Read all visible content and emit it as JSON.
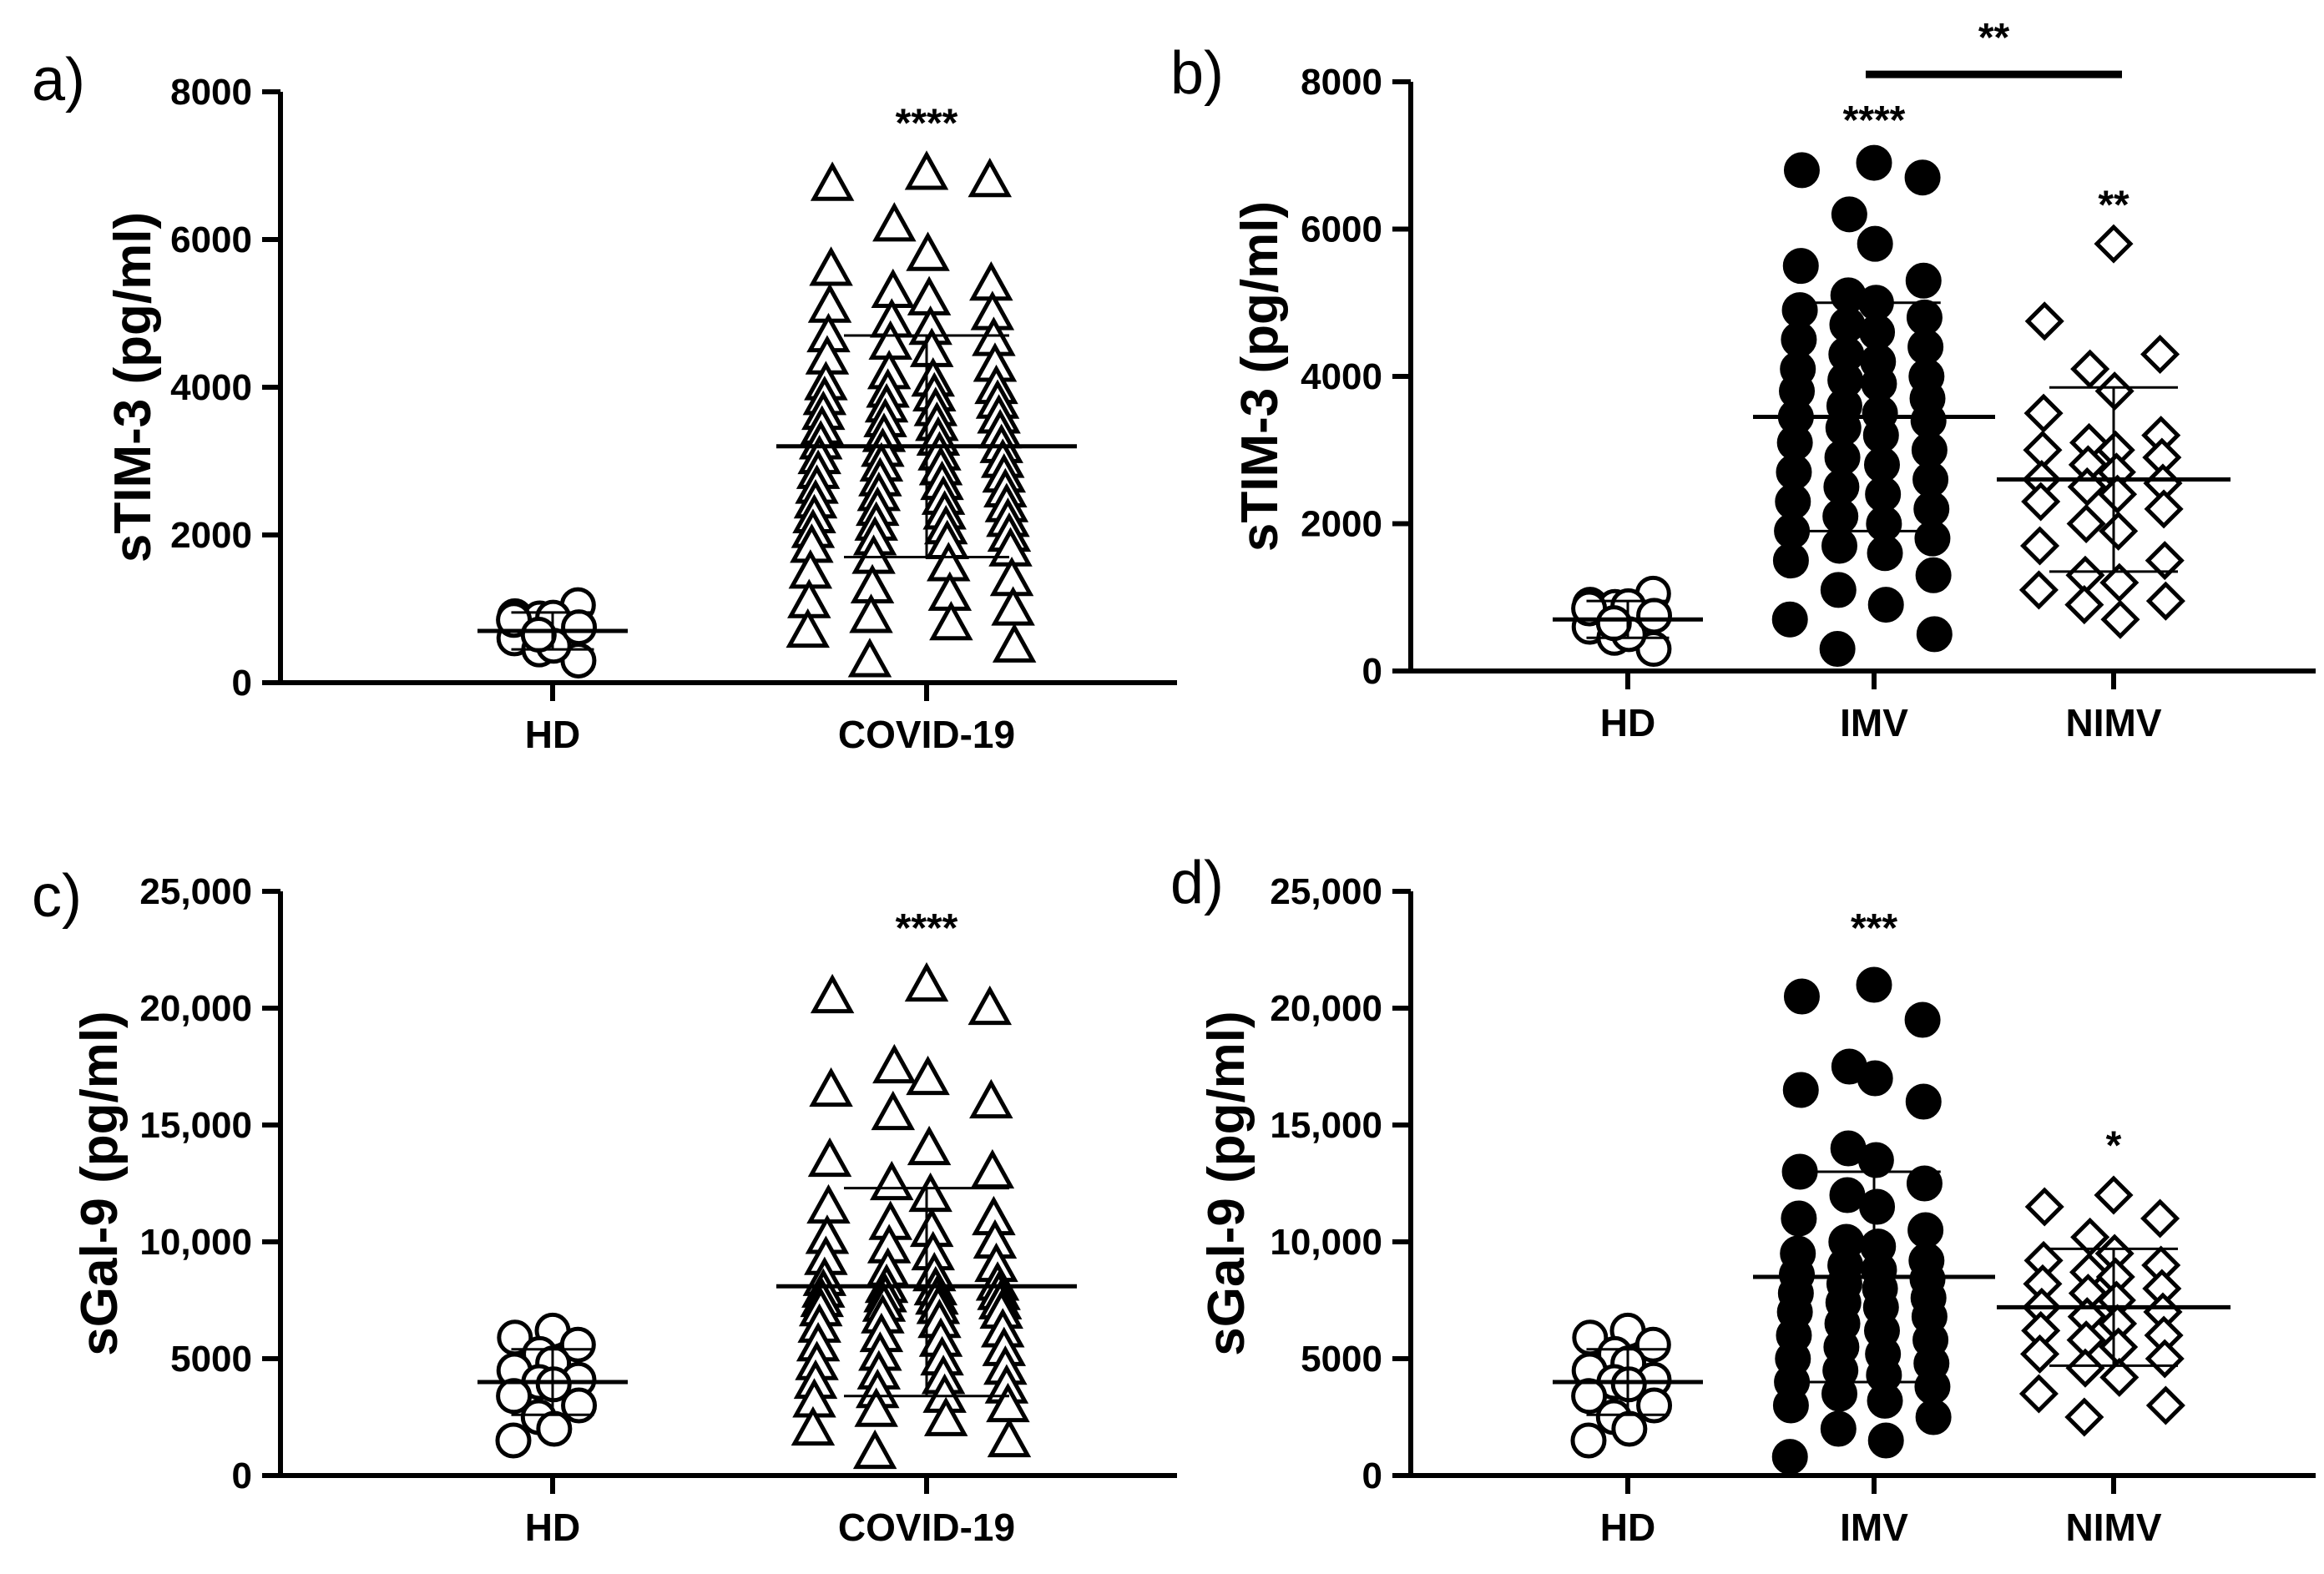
{
  "figure": {
    "panels": [
      {
        "id": "a",
        "letter": "a)",
        "ylabel": "sTIM-3 (pg/ml)",
        "ylim": [
          0,
          8000
        ],
        "yticks": [
          0,
          2000,
          4000,
          6000,
          8000
        ],
        "ytick_labels": [
          "0",
          "2000",
          "4000",
          "6000",
          "8000"
        ],
        "categories": [
          "HD",
          "COVID-19"
        ],
        "markers": [
          "circle",
          "triangle"
        ],
        "significance": [
          {
            "category": "COVID-19",
            "text": "****",
            "y": 7600
          }
        ],
        "brackets": [],
        "series": [
          {
            "category": "HD",
            "mean": 700,
            "sd_low": 450,
            "sd_high": 950,
            "values": [
              720,
              900,
              1050,
              870,
              880,
              600,
              300,
              450,
              500,
              850,
              750,
              650
            ]
          },
          {
            "category": "COVID-19",
            "mean": 3200,
            "sd_low": 1700,
            "sd_high": 4700,
            "values": [
              6900,
              6750,
              6800,
              6200,
              5800,
              5600,
              5400,
              5300,
              5200,
              5100,
              5000,
              4900,
              4800,
              4700,
              4650,
              4600,
              4500,
              4400,
              4300,
              4200,
              4100,
              4050,
              4000,
              3950,
              3900,
              3850,
              3800,
              3750,
              3700,
              3650,
              3600,
              3550,
              3500,
              3450,
              3400,
              3350,
              3300,
              3250,
              3200,
              3150,
              3100,
              3050,
              3000,
              2950,
              2900,
              2850,
              2800,
              2750,
              2700,
              2650,
              2600,
              2550,
              2500,
              2450,
              2400,
              2350,
              2300,
              2250,
              2200,
              2150,
              2100,
              2050,
              2000,
              1950,
              1900,
              1850,
              1800,
              1700,
              1600,
              1500,
              1400,
              1300,
              1200,
              1100,
              1000,
              900,
              800,
              700,
              500,
              300
            ]
          }
        ]
      },
      {
        "id": "b",
        "letter": "b)",
        "ylabel": "sTIM-3 (pg/ml)",
        "ylim": [
          0,
          8000
        ],
        "yticks": [
          0,
          2000,
          4000,
          6000,
          8000
        ],
        "ytick_labels": [
          "0",
          "2000",
          "4000",
          "6000",
          "8000"
        ],
        "categories": [
          "HD",
          "IMV",
          "NIMV"
        ],
        "markers": [
          "circle",
          "filled-circle",
          "diamond"
        ],
        "significance": [
          {
            "category": "IMV",
            "text": "****",
            "y": 7500
          },
          {
            "category": "NIMV",
            "text": "**",
            "y": 6350
          }
        ],
        "brackets": [
          {
            "from": "IMV",
            "to": "NIMV",
            "y": 8100,
            "text": "**"
          }
        ],
        "series": [
          {
            "category": "HD",
            "mean": 700,
            "sd_low": 450,
            "sd_high": 950,
            "values": [
              720,
              900,
              1050,
              870,
              880,
              600,
              300,
              450,
              500,
              850,
              750,
              650
            ]
          },
          {
            "category": "IMV",
            "mean": 3450,
            "sd_low": 1900,
            "sd_high": 5000,
            "values": [
              6900,
              6800,
              6700,
              6200,
              5800,
              5500,
              5300,
              5100,
              5000,
              4900,
              4800,
              4700,
              4600,
              4500,
              4400,
              4300,
              4200,
              4100,
              4000,
              3950,
              3900,
              3800,
              3700,
              3600,
              3500,
              3450,
              3400,
              3300,
              3200,
              3100,
              3000,
              2900,
              2800,
              2700,
              2600,
              2500,
              2400,
              2300,
              2200,
              2100,
              2000,
              1900,
              1800,
              1700,
              1600,
              1500,
              1300,
              1100,
              900,
              700,
              500,
              300
            ]
          },
          {
            "category": "NIMV",
            "mean": 2600,
            "sd_low": 1350,
            "sd_high": 3850,
            "values": [
              5800,
              4750,
              4300,
              4100,
              3800,
              3500,
              3200,
              3100,
              3000,
              3000,
              2900,
              2800,
              2700,
              2600,
              2550,
              2500,
              2400,
              2300,
              2200,
              2000,
              1900,
              1700,
              1500,
              1300,
              1200,
              1100,
              950,
              900,
              700
            ]
          }
        ]
      },
      {
        "id": "c",
        "letter": "c)",
        "ylabel": "sGal-9 (pg/ml)",
        "ylim": [
          0,
          25000
        ],
        "yticks": [
          0,
          5000,
          10000,
          15000,
          20000,
          25000
        ],
        "ytick_labels": [
          "0",
          "5000",
          "10,000",
          "15,000",
          "20,000",
          "25,000"
        ],
        "categories": [
          "HD",
          "COVID-19"
        ],
        "markers": [
          "circle",
          "triangle"
        ],
        "significance": [
          {
            "category": "COVID-19",
            "text": "****",
            "y": 23500
          }
        ],
        "brackets": [],
        "series": [
          {
            "category": "HD",
            "mean": 4000,
            "sd_low": 2600,
            "sd_high": 5400,
            "values": [
              6200,
              5900,
              5600,
              5200,
              4800,
              4500,
              4100,
              4000,
              3900,
              3400,
              3000,
              2500,
              2000,
              1500
            ]
          },
          {
            "category": "COVID-19",
            "mean": 8100,
            "sd_low": 3400,
            "sd_high": 12300,
            "values": [
              21000,
              20500,
              20000,
              17500,
              17000,
              16500,
              16000,
              15500,
              14000,
              13500,
              13000,
              12500,
              12000,
              11500,
              11000,
              10800,
              10500,
              10200,
              10000,
              9800,
              9500,
              9300,
              9000,
              8800,
              8600,
              8400,
              8200,
              8100,
              8000,
              7900,
              7800,
              7700,
              7600,
              7500,
              7400,
              7300,
              7200,
              7100,
              7000,
              6800,
              6600,
              6400,
              6200,
              6000,
              5800,
              5600,
              5400,
              5200,
              5000,
              4800,
              4600,
              4400,
              4200,
              4000,
              3800,
              3600,
              3400,
              3200,
              3000,
              2800,
              2400,
              2000,
              1500,
              1000
            ]
          }
        ]
      },
      {
        "id": "d",
        "letter": "d)",
        "ylabel": "sGal-9 (pg/ml)",
        "ylim": [
          0,
          25000
        ],
        "yticks": [
          0,
          5000,
          10000,
          15000,
          20000,
          25000
        ],
        "ytick_labels": [
          "0",
          "5000",
          "10,000",
          "15,000",
          "20,000",
          "25,000"
        ],
        "categories": [
          "HD",
          "IMV",
          "NIMV"
        ],
        "markers": [
          "circle",
          "filled-circle",
          "diamond"
        ],
        "significance": [
          {
            "category": "IMV",
            "text": "***",
            "y": 23500
          },
          {
            "category": "NIMV",
            "text": "*",
            "y": 14200
          }
        ],
        "brackets": [],
        "series": [
          {
            "category": "HD",
            "mean": 4000,
            "sd_low": 2600,
            "sd_high": 5400,
            "values": [
              6200,
              5900,
              5600,
              5200,
              4800,
              4500,
              4100,
              4000,
              3900,
              3400,
              3000,
              2500,
              2000,
              1500
            ]
          },
          {
            "category": "IMV",
            "mean": 8500,
            "sd_low": 4000,
            "sd_high": 13000,
            "values": [
              21000,
              20500,
              19500,
              17500,
              17000,
              16500,
              16000,
              14000,
              13500,
              13000,
              12500,
              12000,
              11500,
              11000,
              10500,
              10000,
              9800,
              9500,
              9200,
              9000,
              8800,
              8600,
              8400,
              8200,
              8000,
              7800,
              7600,
              7400,
              7200,
              7000,
              6800,
              6500,
              6200,
              6000,
              5800,
              5500,
              5200,
              5000,
              4800,
              4500,
              4300,
              4000,
              3800,
              3500,
              3200,
              3000,
              2500,
              2000,
              1500,
              800
            ]
          },
          {
            "category": "NIMV",
            "mean": 7200,
            "sd_low": 4700,
            "sd_high": 9700,
            "values": [
              12000,
              11500,
              11000,
              10200,
              9500,
              9200,
              9000,
              8700,
              8500,
              8200,
              8000,
              7800,
              7500,
              7200,
              7000,
              6800,
              6500,
              6200,
              6000,
              5800,
              5500,
              5200,
              5000,
              4600,
              4200,
              3500,
              3000,
              2500
            ]
          }
        ]
      }
    ]
  }
}
